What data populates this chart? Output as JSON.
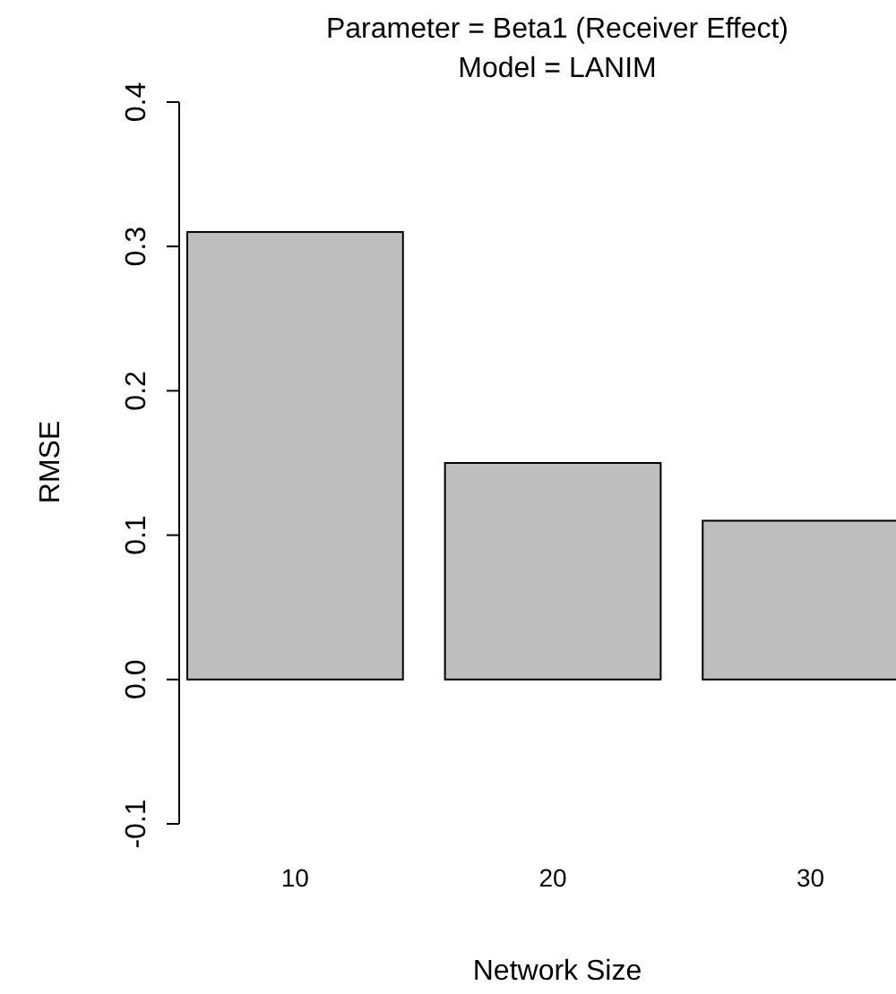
{
  "chart_data": {
    "type": "bar",
    "title": "Parameter = Beta1 (Receiver Effect)",
    "subtitle": "Model = LANIM",
    "xlabel": "Network Size",
    "ylabel": "RMSE",
    "categories": [
      "10",
      "20",
      "30"
    ],
    "values": [
      0.31,
      0.15,
      0.11
    ],
    "color": "#bebebe",
    "ylim": [
      -0.1,
      0.4
    ],
    "yticks": [
      {
        "value": -0.1,
        "label": "-0.1"
      },
      {
        "value": 0,
        "label": "0.0"
      },
      {
        "value": 0.1,
        "label": "0.1"
      },
      {
        "value": 0.2,
        "label": "0.2"
      },
      {
        "value": 0.3,
        "label": "0.3"
      },
      {
        "value": 0.4,
        "label": "0.4"
      }
    ],
    "grid": false
  }
}
